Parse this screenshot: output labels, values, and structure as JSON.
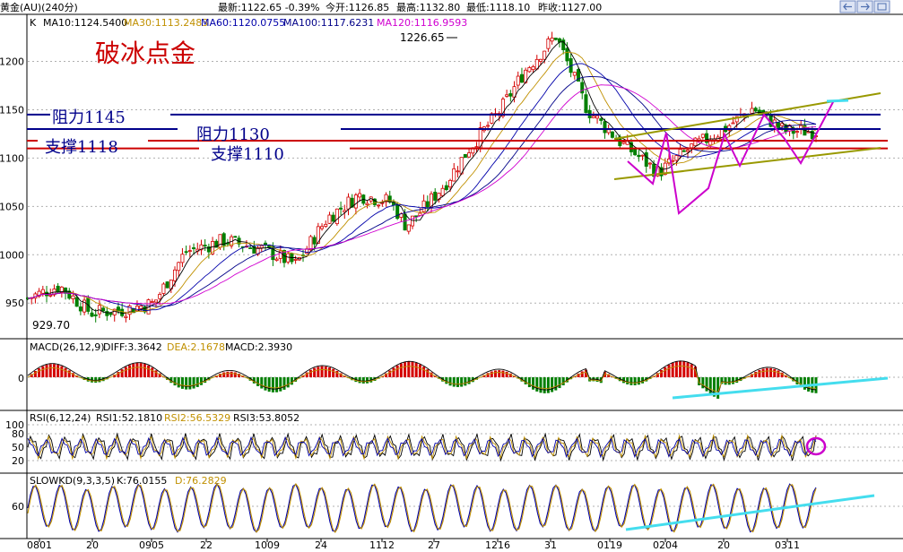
{
  "header": {
    "instrument": "黄金(AU)(240分)",
    "latest": "最新:1122.65 -0.39%",
    "open": "今开:1126.85",
    "high": "最高:1132.80",
    "low": "最低:1118.10",
    "prev_close": "昨收:1127.00"
  },
  "colors": {
    "grid": "#b0b0b0",
    "axis_text": "#000000",
    "up": "#d40000",
    "down": "#007f00",
    "ma10": "#000000",
    "ma30": "#c09000",
    "ma60": "#0000aa",
    "ma100": "#000088",
    "ma120": "#d000d0",
    "resistance": "#00008b",
    "support": "#cc0000",
    "annotation_magenta": "#cc00cc",
    "annotation_cyan": "#44ddee",
    "channel": "#999900",
    "title_red": "#cc0000"
  },
  "annotations": {
    "title": "破冰点金",
    "resistance_1145": "阻力1145",
    "resistance_1130": "阻力1130",
    "support_1118": "支撑1118",
    "support_1110": "支撑1110",
    "peak": "1226.65",
    "trough": "929.70"
  },
  "chart_data": [
    {
      "type": "line",
      "panel": "price",
      "legend": [
        "K",
        "MA10:1124.5400",
        "MA30:1113.2483",
        "MA60:1120.0755",
        "MA100:1117.6231",
        "MA120:1116.9593"
      ],
      "ylim": [
        915,
        1245
      ],
      "y_ticks": [
        950,
        1000,
        1050,
        1100,
        1150,
        1200
      ],
      "x_tick_labels": [
        "0801",
        "20",
        "0905",
        "22",
        "1009",
        "24",
        "1112",
        "27",
        "1216",
        "31",
        "0119",
        "0204",
        "20",
        "0311"
      ],
      "close_path": {
        "x": [
          0,
          4,
          8,
          12,
          16,
          20,
          25,
          30,
          34,
          38,
          42,
          46,
          48,
          50,
          53,
          56,
          60,
          63,
          67,
          71,
          75,
          80,
          84,
          88,
          92,
          96
        ],
        "y": [
          955,
          968,
          940,
          943,
          950,
          1003,
          1015,
          1005,
          990,
          1038,
          1062,
          1055,
          1030,
          1046,
          1074,
          1110,
          1150,
          1190,
          1226.65,
          1150,
          1118,
          1085,
          1110,
          1128,
          1152,
          1128
        ]
      },
      "horizontal_levels": [
        1145,
        1130,
        1118,
        1110
      ],
      "peak": {
        "x": 67,
        "y": 1226.65
      },
      "trough": {
        "x": 2,
        "y": 929.7
      }
    },
    {
      "type": "bar",
      "panel": "macd",
      "legend": [
        "MACD(26,12,9)",
        "DIFF:3.3642",
        "DEA:2.1678",
        "MACD:2.3930"
      ],
      "y_ticks": [
        0
      ]
    },
    {
      "type": "line",
      "panel": "rsi",
      "legend": [
        "RSI(6,12,24)",
        "RSI1:52.1810",
        "RSI2:56.5329",
        "RSI3:53.8052"
      ],
      "ylim": [
        0,
        100
      ],
      "y_ticks": [
        20,
        50,
        80,
        100
      ]
    },
    {
      "type": "line",
      "panel": "slowkd",
      "legend": [
        "SLOWKD(9,3,3,5)",
        "K:76.0155",
        "D:76.2829"
      ],
      "y_ticks": [
        60
      ]
    }
  ]
}
